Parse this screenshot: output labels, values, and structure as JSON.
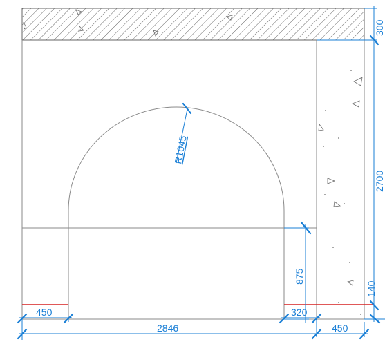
{
  "colors": {
    "dimension": "#1a7fd6",
    "outline": "#8a8a8a",
    "floor_finish": "#d62020",
    "hatch": "#555555"
  },
  "dimensions": {
    "top_slab": "300",
    "column_height": "2700",
    "floor_step": "140",
    "arch_radius": "R1045",
    "jamb_height": "875",
    "left_jamb_offset": "450",
    "right_jamb_offset": "320",
    "opening_width": "2846",
    "column_width": "450"
  }
}
